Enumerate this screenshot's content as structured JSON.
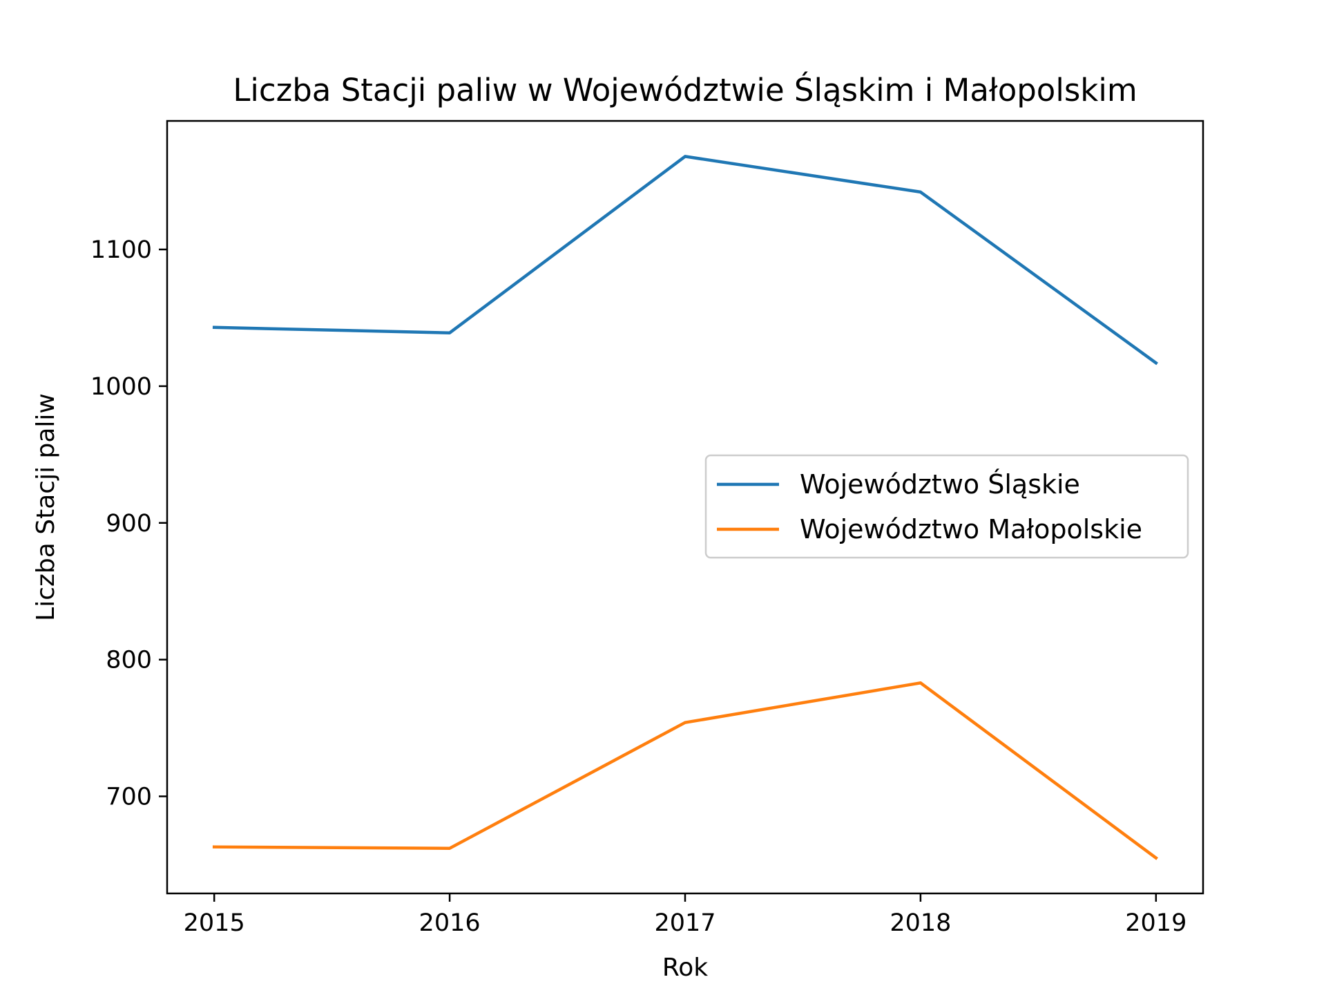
{
  "chart_data": {
    "type": "line",
    "title": "Liczba Stacji paliw w Województwie Śląskim i Małopolskim",
    "xlabel": "Rok",
    "ylabel": "Liczba Stacji paliw",
    "x": [
      2015,
      2016,
      2017,
      2018,
      2019
    ],
    "x_ticks": [
      "2015",
      "2016",
      "2017",
      "2018",
      "2019"
    ],
    "y_ticks": [
      700,
      800,
      900,
      1000,
      1100
    ],
    "xlim": [
      2014.8,
      2019.2
    ],
    "ylim": [
      629,
      1194
    ],
    "grid": false,
    "legend_position": "center-right",
    "series": [
      {
        "name": "Województwo Śląskie",
        "color": "#1f77b4",
        "values": [
          1043,
          1039,
          1168,
          1142,
          1017
        ]
      },
      {
        "name": "Województwo Małopolskie",
        "color": "#ff7f0e",
        "values": [
          663,
          662,
          754,
          783,
          655
        ]
      }
    ]
  }
}
